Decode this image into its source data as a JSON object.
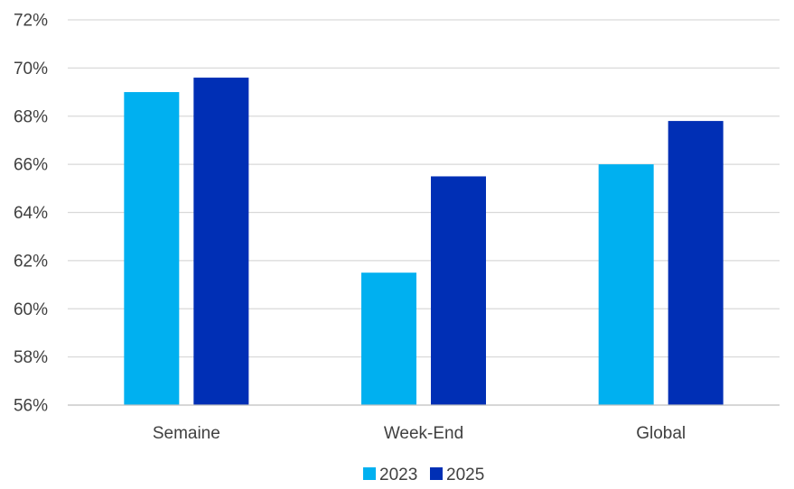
{
  "chart_data": {
    "type": "bar",
    "title": "",
    "xlabel": "",
    "ylabel": "",
    "categories": [
      "Semaine",
      "Week-End",
      "Global"
    ],
    "series": [
      {
        "name": "2023",
        "values": [
          69.0,
          61.5,
          66.0
        ],
        "color": "#00B0F0"
      },
      {
        "name": "2025",
        "values": [
          69.6,
          65.5,
          67.8
        ],
        "color": "#002FB5"
      }
    ],
    "ylim": [
      56,
      72
    ],
    "yticks": [
      56,
      58,
      60,
      62,
      64,
      66,
      68,
      70,
      72
    ],
    "ytick_labels": [
      "56%",
      "58%",
      "60%",
      "62%",
      "64%",
      "66%",
      "68%",
      "70%",
      "72%"
    ],
    "grid": true,
    "legend_position": "bottom",
    "gridline_color": "#D9D9D9",
    "axis_line_color": "#BFBFBF"
  }
}
